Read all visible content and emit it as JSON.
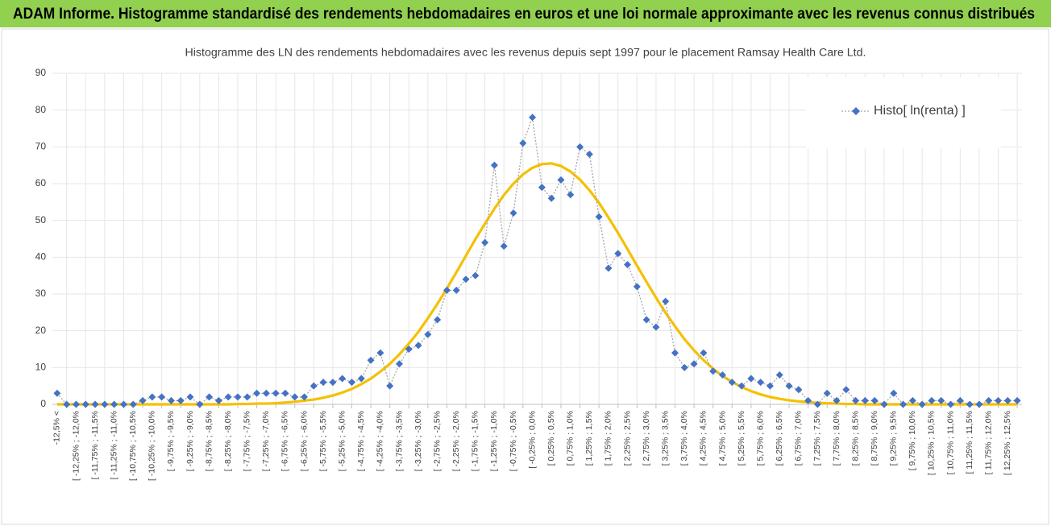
{
  "chart_data": {
    "type": "line",
    "header": "ADAM Informe. Histogramme standardisé des rendements hebdomadaires en euros et une loi normale approximante avec les revenus connus distribués",
    "title": "Histogramme des LN des rendements hebdomadaires avec les revenus depuis sept 1997 pour le placement Ramsay Health Care Ltd.",
    "categories": [
      "-12,5% <",
      null,
      "[ -12,25% ; -12,0%",
      null,
      "[ -11,75% ; -11,5%",
      null,
      "[ -11,25% ; -11,0%",
      null,
      "[ -10,75% ; -10,5%",
      null,
      "[ -10,25% ; -10,0%",
      null,
      "[ -9,75% ; -9,5%",
      null,
      "[ -9,25% ; -9,0%",
      null,
      "[ -8,75% ; -8,5%",
      null,
      "[ -8,25% ; -8,0%",
      null,
      "[ -7,75% ; -7,5%",
      null,
      "[ -7,25% ; -7,0%",
      null,
      "[ -6,75% ; -6,5%",
      null,
      "[ -6,25% ; -6,0%",
      null,
      "[ -5,75% ; -5,5%",
      null,
      "[ -5,25% ; -5,0%",
      null,
      "[ -4,75% ; -4,5%",
      null,
      "[ -4,25% ; -4,0%",
      null,
      "[ -3,75% ; -3,5%",
      null,
      "[ -3,25% ; -3,0%",
      null,
      "[ -2,75% ; -2,5%",
      null,
      "[ -2,25% ; -2,0%",
      null,
      "[ -1,75% ; -1,5%",
      null,
      "[ -1,25% ; -1,0%",
      null,
      "[ -0,75% ; -0,5%",
      null,
      "[ -0,25% ; 0,0%",
      null,
      "[ 0,25% ; 0,5%",
      null,
      "[ 0,75% ; 1,0%",
      null,
      "[ 1,25% ; 1,5%",
      null,
      "[ 1,75% ; 2,0%",
      null,
      "[ 2,25% ; 2,5%",
      null,
      "[ 2,75% ; 3,0%",
      null,
      "[ 3,25% ; 3,5%",
      null,
      "[ 3,75% ; 4,0%",
      null,
      "[ 4,25% ; 4,5%",
      null,
      "[ 4,75% ; 5,0%",
      null,
      "[ 5,25% ; 5,5%",
      null,
      "[ 5,75% ; 6,0%",
      null,
      "[ 6,25% ; 6,5%",
      null,
      "[ 6,75% ; 7,0%",
      null,
      "[ 7,25% ; 7,5%",
      null,
      "[ 7,75% ; 8,0%",
      null,
      "[ 8,25% ; 8,5%",
      null,
      "[ 8,75% ; 9,0%",
      null,
      "[ 9,25% ; 9,5%",
      null,
      "[ 9,75% ; 10,0%",
      null,
      "[ 10,25% ; 10,5%",
      null,
      "[ 10,75% ; 11,0%",
      null,
      "[ 11,25% ; 11,5%",
      null,
      "[ 11,75% ; 12,0%",
      null,
      "[ 12,25% ; 12,5%",
      null
    ],
    "series": [
      {
        "name": "Histo[ ln(renta) ]",
        "color": "#4472c4",
        "values": [
          3,
          0,
          0,
          0,
          0,
          0,
          0,
          0,
          0,
          1,
          2,
          2,
          1,
          1,
          2,
          0,
          2,
          1,
          2,
          2,
          2,
          3,
          3,
          3,
          3,
          2,
          2,
          5,
          6,
          6,
          7,
          6,
          7,
          12,
          14,
          5,
          11,
          15,
          16,
          19,
          23,
          31,
          31,
          34,
          35,
          44,
          65,
          43,
          52,
          71,
          78,
          59,
          56,
          61,
          57,
          70,
          68,
          51,
          37,
          41,
          38,
          32,
          23,
          21,
          28,
          14,
          10,
          11,
          14,
          9,
          8,
          6,
          5,
          7,
          6,
          5,
          8,
          5,
          4,
          1,
          0,
          3,
          1,
          4,
          1,
          1,
          1,
          0,
          3,
          0,
          1,
          0,
          1,
          1,
          0,
          1,
          0,
          0,
          1,
          1,
          1,
          1
        ]
      }
    ],
    "normal_curve": {
      "color": "#f5c000",
      "values": [
        0,
        0,
        0,
        0,
        0,
        0,
        0,
        0,
        0,
        0,
        0,
        0,
        0,
        0,
        0,
        0,
        0,
        0,
        0,
        0.1,
        0.1,
        0.2,
        0.2,
        0.3,
        0.5,
        0.7,
        1.0,
        1.3,
        1.8,
        2.4,
        3.2,
        4.2,
        5.5,
        7.0,
        8.9,
        11.0,
        13.6,
        16.5,
        19.7,
        23.4,
        27.3,
        31.5,
        35.9,
        40.4,
        44.9,
        49.1,
        53.2,
        56.9,
        60.0,
        62.5,
        64.3,
        65.3,
        65.5,
        64.8,
        63.3,
        61.1,
        58.2,
        54.8,
        50.8,
        46.6,
        42.2,
        37.7,
        33.3,
        29.0,
        24.9,
        21.2,
        17.7,
        14.7,
        12.0,
        9.7,
        7.7,
        6.1,
        4.7,
        3.6,
        2.7,
        2.0,
        1.5,
        1.1,
        0.8,
        0.6,
        0.4,
        0.3,
        0.2,
        0.1,
        0.1,
        0,
        0,
        0,
        0,
        0,
        0,
        0,
        0,
        0,
        0,
        0,
        0,
        0,
        0,
        0,
        0,
        0
      ]
    },
    "ylim": [
      0,
      90
    ],
    "yticks": [
      0,
      10,
      20,
      30,
      40,
      50,
      60,
      70,
      80,
      90
    ],
    "grid": true,
    "legend": "top-right"
  }
}
